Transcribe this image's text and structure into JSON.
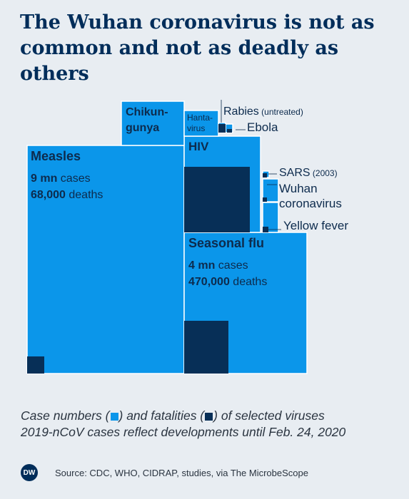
{
  "title": "The Wuhan coronavirus is not as common and not as deadly as others",
  "footer": {
    "line1_a": "Case numbers (",
    "line1_b": ") and fatalities (",
    "line1_c": ") of selected viruses",
    "line2": "2019-nCoV cases reflect developments until Feb. 24, 2020"
  },
  "source": "Source: CDC, WHO, CIDRAP, studies, via The MicrobeScope",
  "logo": "DW",
  "colors": {
    "cases": "#0b96ea",
    "deaths": "#072f57",
    "background": "#e8edf2",
    "title": "#002d5a"
  },
  "chart_data": {
    "type": "treemap",
    "encoding": "square area proportional to count; light blue = case numbers, dark blue = fatalities",
    "series": [
      {
        "name": "Measles",
        "lines": [
          "Measles"
        ],
        "cases": 9000000,
        "deaths": 68000,
        "cases_label": "9 mn cases",
        "deaths_label": "68,000 deaths"
      },
      {
        "name": "Seasonal flu",
        "lines": [
          "Seasonal flu"
        ],
        "cases": 4000000,
        "deaths": 470000,
        "cases_label": "4 mn cases",
        "deaths_label": "470,000 deaths"
      },
      {
        "name": "HIV",
        "lines": [
          "HIV"
        ],
        "cases": 1700000,
        "deaths": 770000
      },
      {
        "name": "Chikungunya",
        "lines": [
          "Chikun-",
          "gunya"
        ],
        "cases": 1000000,
        "deaths": 50
      },
      {
        "name": "Hantavirus",
        "lines": [
          "Hanta-",
          "virus"
        ],
        "cases": 200000,
        "deaths": 0
      },
      {
        "name": "Rabies",
        "note": "(untreated)",
        "cases": 7000,
        "deaths": 7000
      },
      {
        "name": "Ebola",
        "cases": 3500,
        "deaths": 1400
      },
      {
        "name": "SARS",
        "note": "(2003)",
        "cases": 8000,
        "deaths": 800
      },
      {
        "name": "Wuhan coronavirus",
        "lines": [
          "Wuhan",
          "coronavirus"
        ],
        "cases": 80000,
        "deaths": 2700
      },
      {
        "name": "Yellow fever",
        "cases": 200000,
        "deaths": 60000
      }
    ]
  }
}
